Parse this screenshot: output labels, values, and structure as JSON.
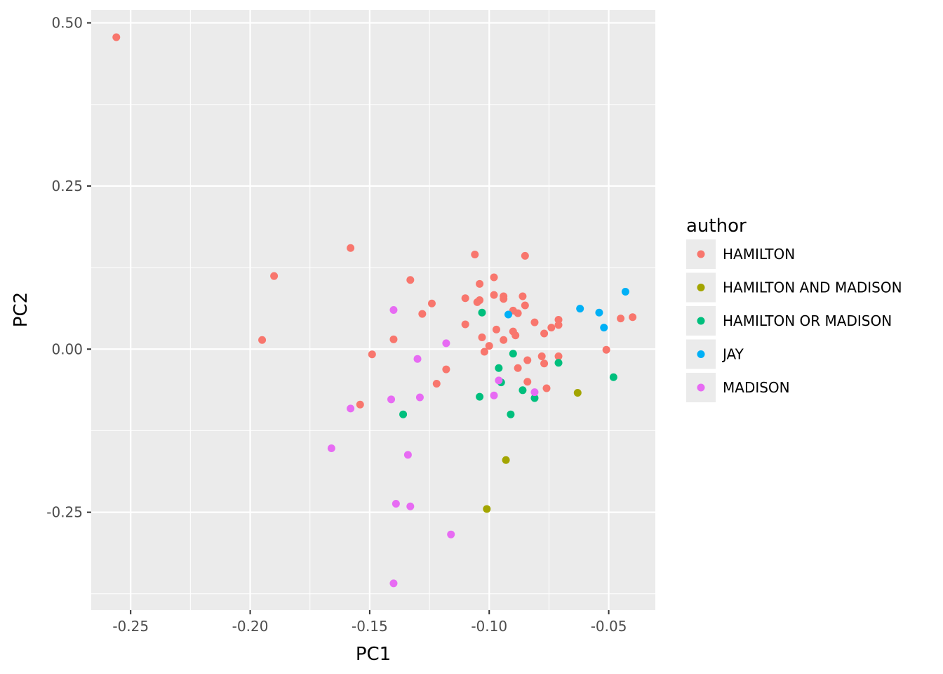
{
  "chart_data": {
    "type": "scatter",
    "title": "",
    "xlabel": "PC1",
    "ylabel": "PC2",
    "xlim": [
      -0.2665,
      -0.0305
    ],
    "ylim": [
      -0.4,
      0.52
    ],
    "xticks": [
      -0.25,
      -0.2,
      -0.15,
      -0.1,
      -0.05
    ],
    "xtick_labels": [
      "-0.25",
      "-0.20",
      "-0.15",
      "-0.10",
      "-0.05"
    ],
    "yticks": [
      -0.25,
      0.0,
      0.25,
      0.5
    ],
    "ytick_labels": [
      "-0.25",
      "0.00",
      "0.25",
      "0.50"
    ],
    "grid": true,
    "legend_title": "author",
    "legend_position": "right",
    "series": [
      {
        "name": "HAMILTON",
        "color": "#F8766D",
        "points": [
          [
            -0.256,
            0.478
          ],
          [
            -0.195,
            0.014
          ],
          [
            -0.19,
            0.112
          ],
          [
            -0.158,
            0.155
          ],
          [
            -0.154,
            -0.085
          ],
          [
            -0.149,
            -0.008
          ],
          [
            -0.14,
            0.015
          ],
          [
            -0.133,
            0.106
          ],
          [
            -0.128,
            0.054
          ],
          [
            -0.124,
            0.07
          ],
          [
            -0.122,
            -0.053
          ],
          [
            -0.118,
            -0.031
          ],
          [
            -0.11,
            0.078
          ],
          [
            -0.11,
            0.038
          ],
          [
            -0.106,
            0.145
          ],
          [
            -0.105,
            0.072
          ],
          [
            -0.104,
            0.1
          ],
          [
            -0.104,
            0.075
          ],
          [
            -0.103,
            0.018
          ],
          [
            -0.102,
            -0.004
          ],
          [
            -0.1,
            0.005
          ],
          [
            -0.098,
            0.11
          ],
          [
            -0.098,
            0.083
          ],
          [
            -0.097,
            0.03
          ],
          [
            -0.094,
            0.081
          ],
          [
            -0.094,
            0.077
          ],
          [
            -0.094,
            0.014
          ],
          [
            -0.09,
            0.059
          ],
          [
            -0.09,
            0.027
          ],
          [
            -0.089,
            0.021
          ],
          [
            -0.088,
            0.055
          ],
          [
            -0.088,
            -0.029
          ],
          [
            -0.086,
            0.081
          ],
          [
            -0.085,
            0.067
          ],
          [
            -0.085,
            0.143
          ],
          [
            -0.084,
            -0.017
          ],
          [
            -0.084,
            -0.05
          ],
          [
            -0.081,
            0.041
          ],
          [
            -0.078,
            -0.011
          ],
          [
            -0.077,
            -0.022
          ],
          [
            -0.077,
            0.024
          ],
          [
            -0.076,
            -0.06
          ],
          [
            -0.074,
            0.033
          ],
          [
            -0.071,
            0.045
          ],
          [
            -0.071,
            0.037
          ],
          [
            -0.071,
            -0.011
          ],
          [
            -0.051,
            -0.001
          ],
          [
            -0.045,
            0.047
          ],
          [
            -0.04,
            0.049
          ]
        ]
      },
      {
        "name": "HAMILTON AND MADISON",
        "color": "#A3A500",
        "points": [
          [
            -0.063,
            -0.067
          ],
          [
            -0.093,
            -0.17
          ],
          [
            -0.101,
            -0.245
          ]
        ]
      },
      {
        "name": "HAMILTON OR MADISON",
        "color": "#00BF7D",
        "points": [
          [
            -0.103,
            0.056
          ],
          [
            -0.09,
            -0.007
          ],
          [
            -0.096,
            -0.029
          ],
          [
            -0.095,
            -0.051
          ],
          [
            -0.086,
            -0.063
          ],
          [
            -0.104,
            -0.073
          ],
          [
            -0.081,
            -0.075
          ],
          [
            -0.091,
            -0.1
          ],
          [
            -0.136,
            -0.1
          ],
          [
            -0.071,
            -0.021
          ],
          [
            -0.048,
            -0.043
          ]
        ]
      },
      {
        "name": "JAY",
        "color": "#00B0F6",
        "points": [
          [
            -0.043,
            0.088
          ],
          [
            -0.062,
            0.062
          ],
          [
            -0.054,
            0.056
          ],
          [
            -0.052,
            0.033
          ],
          [
            -0.092,
            0.053
          ]
        ]
      },
      {
        "name": "MADISON",
        "color": "#E76BF3",
        "points": [
          [
            -0.14,
            0.06
          ],
          [
            -0.118,
            0.009
          ],
          [
            -0.13,
            -0.015
          ],
          [
            -0.096,
            -0.048
          ],
          [
            -0.081,
            -0.066
          ],
          [
            -0.098,
            -0.071
          ],
          [
            -0.129,
            -0.074
          ],
          [
            -0.141,
            -0.077
          ],
          [
            -0.158,
            -0.091
          ],
          [
            -0.166,
            -0.152
          ],
          [
            -0.134,
            -0.162
          ],
          [
            -0.139,
            -0.237
          ],
          [
            -0.133,
            -0.241
          ],
          [
            -0.116,
            -0.284
          ],
          [
            -0.14,
            -0.359
          ]
        ]
      }
    ]
  }
}
